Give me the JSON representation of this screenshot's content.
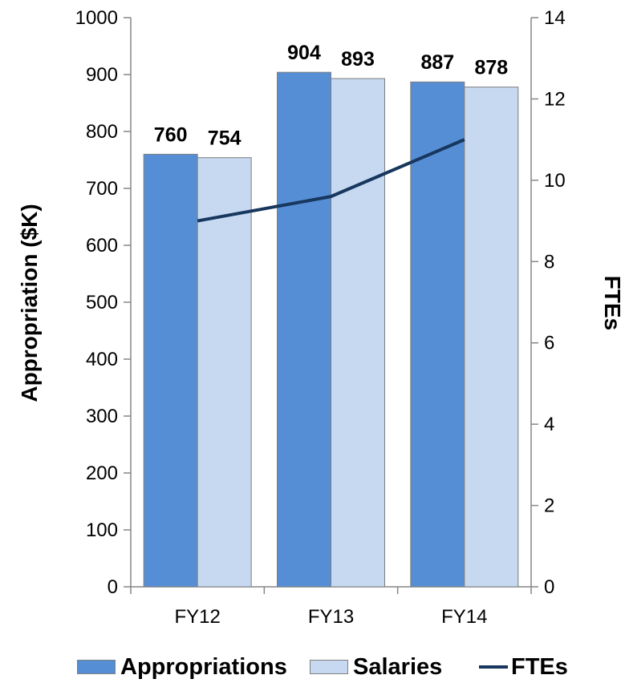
{
  "chart_data": {
    "type": "bar",
    "categories": [
      "FY12",
      "FY13",
      "FY14"
    ],
    "series": [
      {
        "name": "Appropriations",
        "type": "bar",
        "axis": "left",
        "values": [
          760,
          904,
          887
        ],
        "color": "#558ed5"
      },
      {
        "name": "Salaries",
        "type": "bar",
        "axis": "left",
        "values": [
          754,
          893,
          878
        ],
        "color": "#c6d9f1"
      },
      {
        "name": "FTEs",
        "type": "line",
        "axis": "right",
        "values": [
          9.0,
          9.6,
          11.0
        ],
        "color": "#17375e"
      }
    ],
    "ylabel": "Appropriation ($K)",
    "y2label": "FTEs",
    "ylim": [
      0,
      1000
    ],
    "y2lim": [
      0,
      14
    ],
    "yticks": [
      "0",
      "100",
      "200",
      "300",
      "400",
      "500",
      "600",
      "700",
      "800",
      "900",
      "1000"
    ],
    "y2ticks": [
      "0",
      "2",
      "4",
      "6",
      "8",
      "10",
      "12",
      "14"
    ],
    "data_labels": [
      [
        "760",
        "904",
        "887"
      ],
      [
        "754",
        "893",
        "878"
      ]
    ],
    "grid": false,
    "legend": "bottom"
  }
}
